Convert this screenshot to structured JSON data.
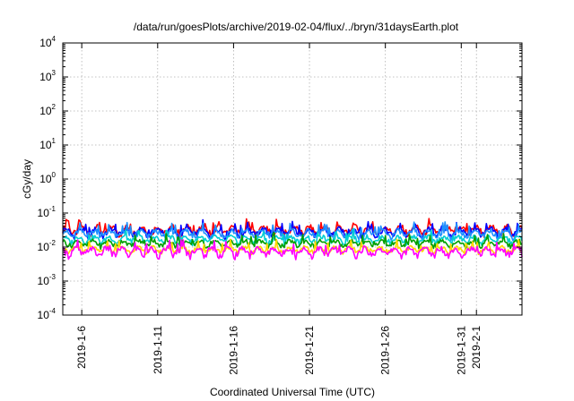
{
  "chart_data": {
    "type": "line",
    "title": "/data/run/goesPlots/archive/2019-02-04/flux/../bryn/31daysEarth.plot",
    "xlabel": "Coordinated Universal Time (UTC)",
    "ylabel": "cGy/day",
    "y_scale": "log",
    "ylim": [
      0.0001,
      10000
    ],
    "xlim": [
      "2019-01-04T18:00",
      "2019-02-04T00:00"
    ],
    "grid": true,
    "legend": "none",
    "y_ticks": [
      {
        "base": "10",
        "exp": "-4"
      },
      {
        "base": "10",
        "exp": "-3"
      },
      {
        "base": "10",
        "exp": "-2"
      },
      {
        "base": "10",
        "exp": "-1"
      },
      {
        "base": "10",
        "exp": "0"
      },
      {
        "base": "10",
        "exp": "1"
      },
      {
        "base": "10",
        "exp": "2"
      },
      {
        "base": "10",
        "exp": "3"
      },
      {
        "base": "10",
        "exp": "4"
      }
    ],
    "x_ticks": [
      {
        "label": "2019-1-6",
        "date": "2019-01-06"
      },
      {
        "label": "2019-1-11",
        "date": "2019-01-11"
      },
      {
        "label": "2019-1-16",
        "date": "2019-01-16"
      },
      {
        "label": "2019-1-21",
        "date": "2019-01-21"
      },
      {
        "label": "2019-1-26",
        "date": "2019-01-26"
      },
      {
        "label": "2019-1-31",
        "date": "2019-01-31"
      },
      {
        "label": "2019-2-1",
        "date": "2019-02-01"
      }
    ],
    "series": [
      {
        "color": "#ff0000",
        "base": 0.032,
        "amplitude": 0.3,
        "phase": 0.0
      },
      {
        "color": "#0000ff",
        "base": 0.028,
        "amplitude": 0.28,
        "phase": 0.4
      },
      {
        "color": "#1e90ff",
        "base": 0.025,
        "amplitude": 0.26,
        "phase": 0.8
      },
      {
        "color": "#00ced1",
        "base": 0.017,
        "amplitude": 0.24,
        "phase": 1.2
      },
      {
        "color": "#00a000",
        "base": 0.013,
        "amplitude": 0.22,
        "phase": 1.6
      },
      {
        "color": "#ffd700",
        "base": 0.0085,
        "amplitude": 0.2,
        "phase": 2.0
      },
      {
        "color": "#ff00ff",
        "base": 0.0075,
        "amplitude": 0.3,
        "phase": 2.4
      }
    ]
  }
}
